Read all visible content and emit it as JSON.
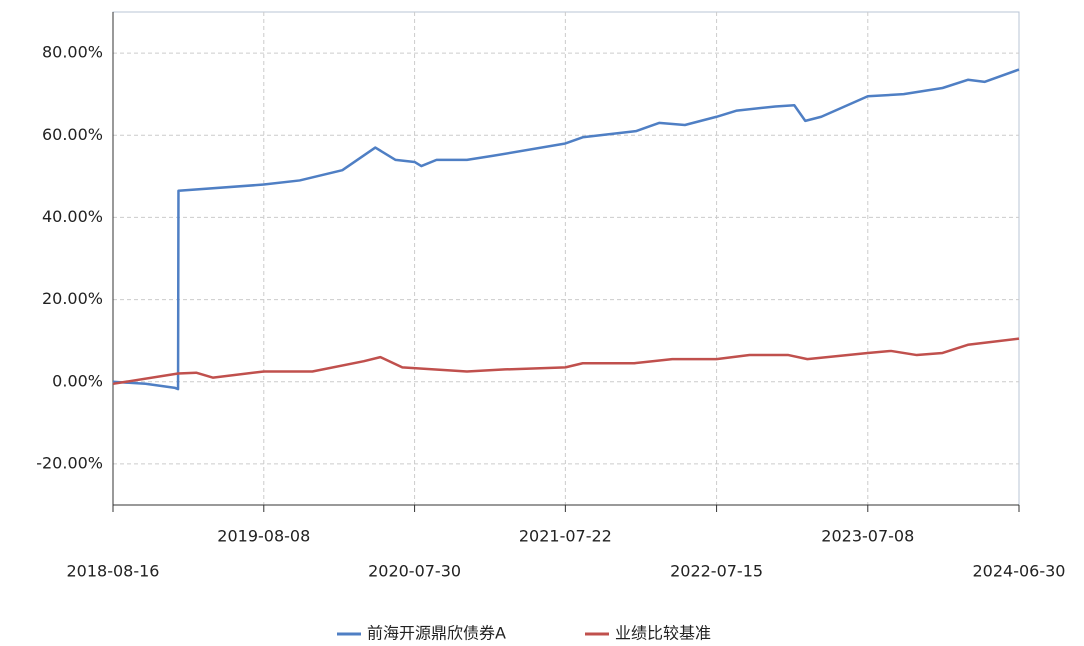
{
  "chart_data": {
    "type": "line",
    "xlim": [
      "2018-08-16",
      "2024-06-30"
    ],
    "xticks": [
      "2018-08-16",
      "2019-08-08",
      "2020-07-30",
      "2021-07-22",
      "2022-07-15",
      "2023-07-08",
      "2024-06-30"
    ],
    "ylim": [
      -30,
      90
    ],
    "yticks": [
      {
        "value": -20,
        "label": "-20.00%"
      },
      {
        "value": 0,
        "label": "0.00%"
      },
      {
        "value": 20,
        "label": "20.00%"
      },
      {
        "value": 40,
        "label": "40.00%"
      },
      {
        "value": 60,
        "label": "60.00%"
      },
      {
        "value": 80,
        "label": "80.00%"
      }
    ],
    "grid": true,
    "legend": "bottom",
    "series": [
      {
        "name": "前海开源鼎欣债券A",
        "color": "#4f7fc4",
        "x": [
          "2018-08-16",
          "2018-11-01",
          "2019-01-10",
          "2019-01-17",
          "2019-01-18",
          "2019-08-08",
          "2019-11-01",
          "2020-02-10",
          "2020-04-28",
          "2020-06-15",
          "2020-07-30",
          "2020-08-15",
          "2020-09-20",
          "2020-12-01",
          "2021-02-01",
          "2021-07-22",
          "2021-09-01",
          "2022-01-05",
          "2022-03-01",
          "2022-05-01",
          "2022-07-15",
          "2022-09-01",
          "2022-12-01",
          "2023-01-15",
          "2023-02-10",
          "2023-03-20",
          "2023-07-08",
          "2023-10-01",
          "2024-01-01",
          "2024-03-01",
          "2024-04-10",
          "2024-06-30"
        ],
        "values": [
          0,
          -0.5,
          -1.5,
          -1.8,
          46.5,
          48,
          49,
          51.5,
          57,
          54,
          53.5,
          52.5,
          54,
          54,
          55,
          58,
          59.5,
          61,
          63,
          62.5,
          64.5,
          66,
          67,
          67.3,
          63.5,
          64.5,
          69.5,
          70,
          71.5,
          73.5,
          73,
          76
        ]
      },
      {
        "name": "业绩比较基准",
        "color": "#c0504d",
        "x": [
          "2018-08-16",
          "2019-01-17",
          "2019-03-01",
          "2019-04-10",
          "2019-08-08",
          "2019-12-01",
          "2020-04-01",
          "2020-05-10",
          "2020-07-01",
          "2020-12-01",
          "2021-03-01",
          "2021-07-22",
          "2021-09-01",
          "2022-01-01",
          "2022-04-01",
          "2022-07-15",
          "2022-10-01",
          "2023-01-01",
          "2023-02-15",
          "2023-07-08",
          "2023-09-01",
          "2023-11-01",
          "2024-01-01",
          "2024-03-01",
          "2024-06-30"
        ],
        "values": [
          -0.5,
          2,
          2.2,
          1,
          2.5,
          2.5,
          5,
          6,
          3.5,
          2.5,
          3,
          3.5,
          4.5,
          4.5,
          5.5,
          5.5,
          6.5,
          6.5,
          5.5,
          7,
          7.5,
          6.5,
          7,
          9,
          10.5
        ]
      }
    ]
  }
}
